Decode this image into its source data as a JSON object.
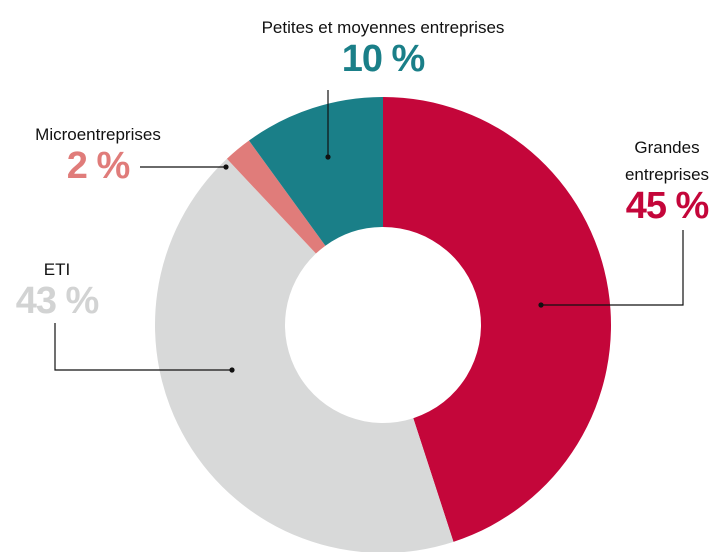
{
  "chart_data": {
    "type": "donut",
    "categories": [
      "Grandes entreprises",
      "ETI",
      "Microentreprises",
      "Petites et moyennes entreprises"
    ],
    "values": [
      45,
      43,
      2,
      10
    ],
    "value_labels": [
      "45 %",
      "43 %",
      "2 %",
      "10 %"
    ],
    "colors": [
      "#c4063a",
      "#d8d9d9",
      "#e07c7a",
      "#1a7f88"
    ],
    "label_colors": [
      "#c4063a",
      "#d2d3d3",
      "#e07c7a",
      "#1a7f88"
    ]
  }
}
